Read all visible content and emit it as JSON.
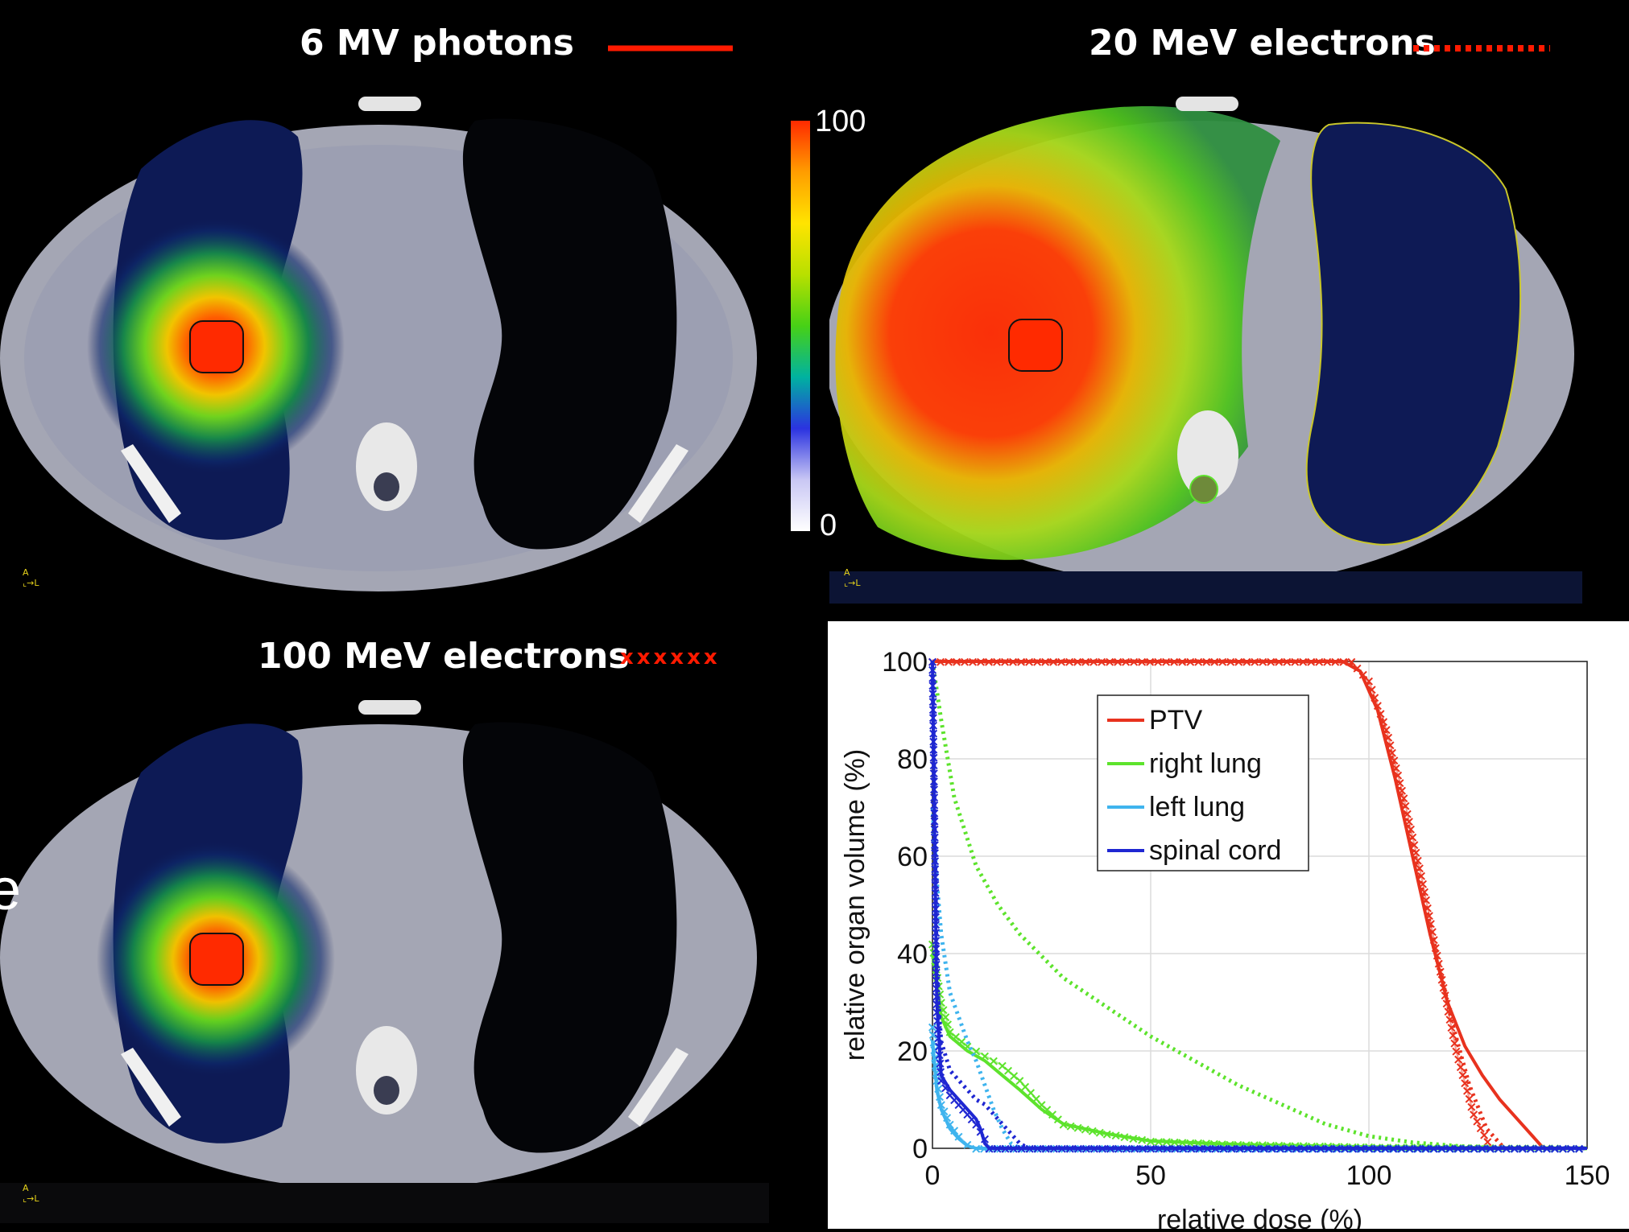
{
  "panels": {
    "photons": {
      "title": "6 MV photons",
      "legend_style": "solid",
      "orientation": {
        "a": "A",
        "l": "L"
      }
    },
    "e20": {
      "title": "20 MeV electrons",
      "legend_style": "dotted",
      "orientation": {
        "a": "A",
        "l": "L"
      }
    },
    "e100": {
      "title": "100 MeV electrons",
      "legend_marker": "xxxxxx",
      "orientation": {
        "a": "A",
        "l": "L"
      }
    }
  },
  "colorbar": {
    "max_label": "100",
    "min_label": "0",
    "colors": [
      "#ffffff",
      "#c9c7f4",
      "#2b33e0",
      "#00b2a0",
      "#47d116",
      "#b8e000",
      "#ffe400",
      "#ff9d00",
      "#ff2a00"
    ]
  },
  "edge_letter": "e",
  "colors": {
    "ptv": "#e8321e",
    "right_lung": "#5de32c",
    "left_lung": "#3fb4ee",
    "spinal_cord": "#1f27d2"
  },
  "chart_data": {
    "type": "line",
    "xlabel": "relative dose (%)",
    "ylabel": "relative organ volume (%)",
    "xlim": [
      0,
      150
    ],
    "ylim": [
      0,
      100
    ],
    "xticks": [
      0,
      50,
      100,
      150
    ],
    "yticks": [
      0,
      20,
      40,
      60,
      80,
      100
    ],
    "grid": true,
    "legend_position": "upper-middle",
    "legend": [
      "PTV",
      "right lung",
      "left lung",
      "spinal cord"
    ],
    "series": [
      {
        "name": "PTV",
        "structure": "PTV",
        "beam": "6 MV photons",
        "style": "solid",
        "x": [
          0,
          94,
          98,
          102,
          106,
          110,
          114,
          118,
          122,
          126,
          130,
          134,
          138,
          140
        ],
        "y": [
          100,
          100,
          98,
          90,
          76,
          60,
          44,
          30,
          21,
          15,
          10,
          6,
          2,
          0
        ]
      },
      {
        "name": "PTV",
        "structure": "PTV",
        "beam": "20 MeV electrons",
        "style": "dotted",
        "x": [
          0,
          95,
          99,
          103,
          107,
          111,
          115,
          119,
          123,
          127,
          131
        ],
        "y": [
          100,
          100,
          97,
          88,
          74,
          58,
          42,
          26,
          13,
          4,
          0
        ]
      },
      {
        "name": "PTV",
        "structure": "PTV",
        "beam": "100 MeV electrons",
        "style": "x",
        "x": [
          0,
          96,
          100,
          104,
          108,
          112,
          116,
          120,
          124,
          128
        ],
        "y": [
          100,
          100,
          96,
          86,
          72,
          56,
          38,
          20,
          7,
          0
        ]
      },
      {
        "name": "right lung",
        "structure": "right lung",
        "beam": "6 MV photons",
        "style": "solid",
        "x": [
          0,
          2,
          4,
          8,
          12,
          16,
          20,
          25,
          30,
          40,
          50,
          70,
          100,
          150
        ],
        "y": [
          40,
          27,
          23,
          20,
          18,
          15,
          12,
          8,
          5,
          3,
          1.5,
          0.8,
          0.3,
          0
        ]
      },
      {
        "name": "right lung",
        "structure": "right lung",
        "beam": "20 MeV electrons",
        "style": "dotted",
        "x": [
          0,
          2,
          5,
          10,
          15,
          20,
          30,
          40,
          50,
          60,
          70,
          80,
          90,
          100,
          110,
          120,
          130,
          150
        ],
        "y": [
          100,
          88,
          72,
          58,
          50,
          44,
          35,
          29,
          23,
          18,
          13,
          9,
          5,
          2.5,
          1.2,
          0.5,
          0,
          0
        ]
      },
      {
        "name": "right lung",
        "structure": "right lung",
        "beam": "100 MeV electrons",
        "style": "x",
        "x": [
          0,
          2,
          4,
          8,
          12,
          16,
          20,
          25,
          30,
          40,
          50,
          70,
          100,
          150
        ],
        "y": [
          42,
          30,
          24,
          21,
          19,
          17,
          14,
          9,
          5,
          3,
          1.5,
          0.8,
          0.3,
          0
        ]
      },
      {
        "name": "left lung",
        "structure": "left lung",
        "beam": "6 MV photons",
        "style": "solid",
        "x": [
          0,
          1,
          2,
          4,
          6,
          8,
          10,
          150
        ],
        "y": [
          22,
          12,
          8,
          4,
          2,
          0.5,
          0,
          0
        ]
      },
      {
        "name": "left lung",
        "structure": "left lung",
        "beam": "20 MeV electrons",
        "style": "dotted",
        "x": [
          0,
          1,
          2,
          4,
          6,
          8,
          10,
          12,
          14,
          16,
          18,
          20,
          150
        ],
        "y": [
          70,
          55,
          44,
          32,
          27,
          22,
          18,
          13,
          8,
          4,
          1,
          0,
          0
        ]
      },
      {
        "name": "left lung",
        "structure": "left lung",
        "beam": "100 MeV electrons",
        "style": "x",
        "x": [
          0,
          1,
          2,
          4,
          6,
          8,
          10,
          150
        ],
        "y": [
          25,
          14,
          9,
          5,
          2.5,
          0.8,
          0,
          0
        ]
      },
      {
        "name": "spinal cord",
        "structure": "spinal cord",
        "beam": "6 MV photons",
        "style": "solid",
        "x": [
          0,
          1,
          2,
          4,
          6,
          8,
          10,
          11,
          12,
          13,
          150
        ],
        "y": [
          100,
          30,
          15,
          12,
          10,
          8,
          6,
          4,
          1,
          0,
          0
        ]
      },
      {
        "name": "spinal cord",
        "structure": "spinal cord",
        "beam": "20 MeV electrons",
        "style": "dotted",
        "x": [
          0,
          1,
          2,
          4,
          6,
          8,
          10,
          12,
          14,
          16,
          18,
          20,
          22,
          150
        ],
        "y": [
          100,
          35,
          22,
          16,
          14,
          12,
          10,
          9,
          7,
          5,
          3,
          1,
          0,
          0
        ]
      },
      {
        "name": "spinal cord",
        "structure": "spinal cord",
        "beam": "100 MeV electrons",
        "style": "x",
        "x": [
          0,
          1,
          2,
          4,
          6,
          8,
          10,
          12,
          13,
          150
        ],
        "y": [
          100,
          28,
          14,
          11,
          9,
          7,
          5,
          2,
          0,
          0
        ]
      }
    ]
  }
}
